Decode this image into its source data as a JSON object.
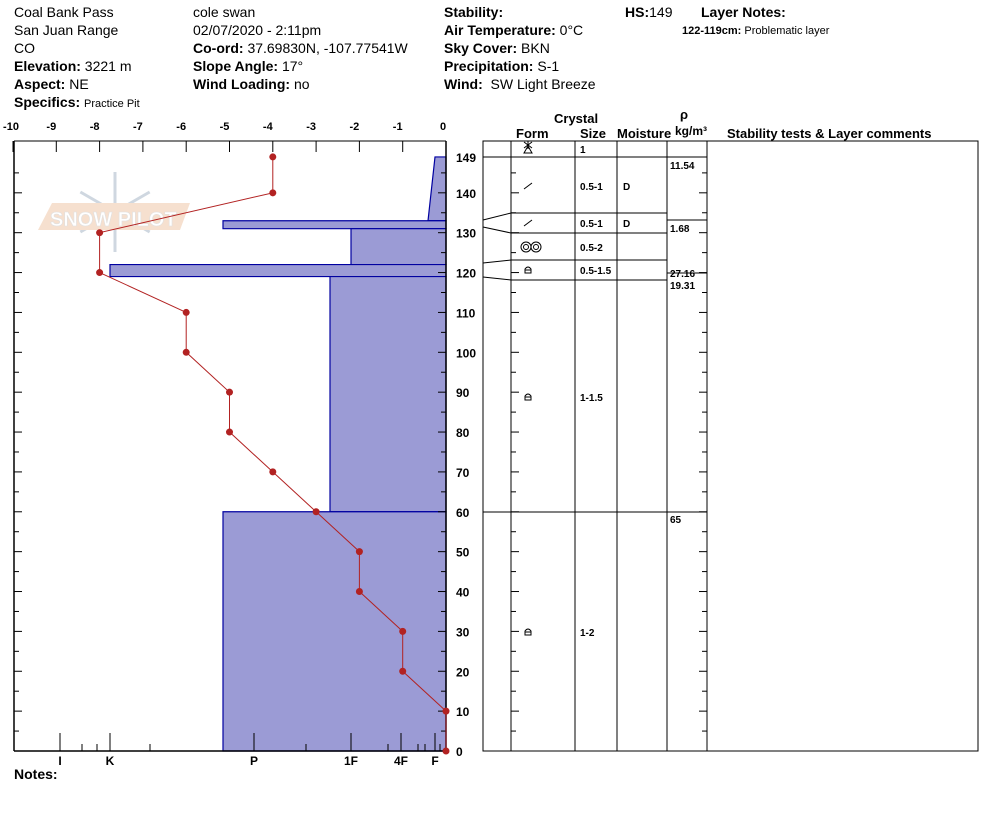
{
  "header": {
    "location": "Coal Bank Pass",
    "range": "San Juan Range",
    "state": "CO",
    "elevation_label": "Elevation:",
    "elevation": "3221 m",
    "aspect_label": "Aspect:",
    "aspect": "NE",
    "specifics_label": "Specifics:",
    "specifics": "Practice Pit",
    "observer": "cole  swan",
    "datetime": "02/07/2020 - 2:11pm",
    "coord_label": "Co-ord:",
    "coord": "37.69830N, -107.77541W",
    "slope_label": "Slope Angle:",
    "slope": "17°",
    "wind_loading_label": "Wind Loading:",
    "wind_loading": "no",
    "stability_label": "Stability:",
    "stability": "",
    "air_temp_label": "Air Temperature:",
    "air_temp": "0°C",
    "sky_label": "Sky Cover:",
    "sky": "BKN",
    "precip_label": "Precipitation:",
    "precip": "S-1",
    "wind_label": "Wind:",
    "wind": "SW Light Breeze",
    "hs_label": "HS:",
    "hs": "149",
    "layer_notes_label": "Layer Notes:",
    "layer_note_range": "122-119cm:",
    "layer_note_text": "Problematic layer"
  },
  "notes_label": "Notes:",
  "logo_text": "SNOW PILOT",
  "colors": {
    "hardness_fill": "#9b9bd5",
    "hardness_stroke": "#0000a0",
    "temperature": "#b22222"
  },
  "table_headers": {
    "crystal": "Crystal",
    "form": "Form",
    "size": "Size",
    "moisture": "Moisture",
    "rho": "ρ",
    "density_unit": "kg/m³",
    "comments": "Stability tests & Layer comments"
  },
  "chart_data": {
    "type": "line",
    "temperature_axis": {
      "ticks": [
        -10,
        -9,
        -8,
        -7,
        -6,
        -5,
        -4,
        -3,
        -2,
        -1,
        0
      ],
      "range": [
        -10,
        0
      ]
    },
    "depth_axis": {
      "ticks": [
        0,
        10,
        20,
        30,
        40,
        50,
        60,
        70,
        80,
        90,
        100,
        110,
        120,
        130,
        140,
        149
      ],
      "range": [
        0,
        149
      ]
    },
    "hardness_axis": {
      "labels": [
        "I",
        "K",
        "P",
        "1F",
        "4F",
        "F"
      ]
    },
    "temperature_profile": [
      {
        "depth": 149,
        "temp": -4
      },
      {
        "depth": 140,
        "temp": -4
      },
      {
        "depth": 130,
        "temp": -8
      },
      {
        "depth": 120,
        "temp": -8
      },
      {
        "depth": 110,
        "temp": -6
      },
      {
        "depth": 100,
        "temp": -6
      },
      {
        "depth": 90,
        "temp": -5
      },
      {
        "depth": 80,
        "temp": -5
      },
      {
        "depth": 70,
        "temp": -4
      },
      {
        "depth": 60,
        "temp": -3
      },
      {
        "depth": 50,
        "temp": -2
      },
      {
        "depth": 40,
        "temp": -2
      },
      {
        "depth": 30,
        "temp": -1
      },
      {
        "depth": 20,
        "temp": -1
      },
      {
        "depth": 10,
        "temp": 0
      },
      {
        "depth": 0,
        "temp": 0
      }
    ],
    "hardness_layers": [
      {
        "top": 149,
        "bottom": 133,
        "hardness_top": "F",
        "hardness_bottom": "F+"
      },
      {
        "top": 133,
        "bottom": 131,
        "hardness_top": "P-",
        "hardness_bottom": "P-"
      },
      {
        "top": 131,
        "bottom": 122,
        "hardness_top": "1F",
        "hardness_bottom": "1F"
      },
      {
        "top": 122,
        "bottom": 119,
        "hardness_top": "K",
        "hardness_bottom": "K"
      },
      {
        "top": 119,
        "bottom": 60,
        "hardness_top": "1F-",
        "hardness_bottom": "1F-"
      },
      {
        "top": 60,
        "bottom": 0,
        "hardness_top": "P-",
        "hardness_bottom": "P-"
      }
    ],
    "crystal_layers": [
      {
        "form": "precipitation-particles",
        "size": "1",
        "moisture": ""
      },
      {
        "form": "decomposing-fragments",
        "size": "0.5-1",
        "moisture": "D"
      },
      {
        "form": "decomposing-fragments",
        "size": "0.5-1",
        "moisture": "D"
      },
      {
        "form": "melt-forms",
        "size": "0.5-2",
        "moisture": ""
      },
      {
        "form": "rounding-faceted",
        "size": "0.5-1.5",
        "moisture": ""
      },
      {
        "form": "rounding-faceted",
        "size": "1-1.5",
        "moisture": ""
      },
      {
        "form": "rounding-faceted",
        "size": "1-2",
        "moisture": ""
      }
    ],
    "densities": [
      "11.54",
      "1.68",
      "27.16",
      "19.31",
      "65"
    ]
  }
}
